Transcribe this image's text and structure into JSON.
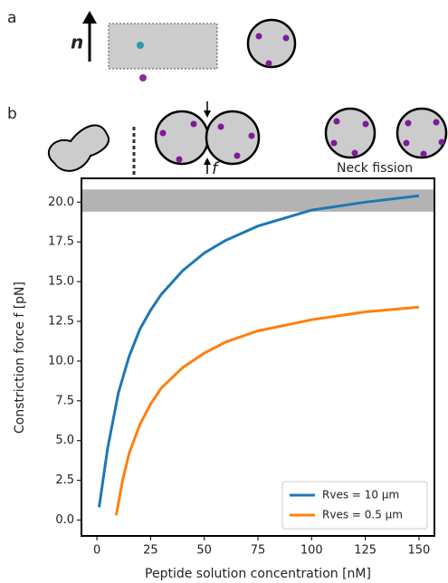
{
  "chart_data": {
    "type": "line",
    "panel_labels": [
      "a",
      "b"
    ],
    "annotations": [
      "n",
      "f",
      "Neck fission"
    ],
    "x_label": "Peptide solution concentration [nM]",
    "y_label": "Constriction force f [pN]",
    "xlim": [
      -7.2,
      157.2
    ],
    "ylim": [
      -1,
      21.5
    ],
    "xticks": [
      0,
      25,
      50,
      75,
      100,
      125,
      150
    ],
    "yticks": [
      {
        "value": 0,
        "label": "0.0"
      },
      2.5,
      {
        "value": 5,
        "label": "5.0"
      },
      7.5,
      {
        "value": 10,
        "label": "10.0"
      },
      12.5,
      {
        "value": 15,
        "label": "15.0"
      },
      17.5,
      {
        "value": 20,
        "label": "20.0"
      }
    ],
    "shaded_band": {
      "ymin": 19.4,
      "ymax": 20.8,
      "color": "#b3b3b3"
    },
    "legend": "lower right",
    "series": [
      {
        "name": "Rves = 10 μm",
        "color": "#1f77b4",
        "x": [
          1,
          5,
          10,
          15,
          20,
          25,
          30,
          40,
          50,
          60,
          75,
          100,
          125,
          150
        ],
        "values": [
          0.8,
          4.5,
          8,
          10.3,
          12,
          13.2,
          14.2,
          15.7,
          16.8,
          17.6,
          18.5,
          19.5,
          20.0,
          20.4
        ]
      },
      {
        "name": "Rves = 0.5 μm",
        "color": "#ff7f0e",
        "x": [
          9,
          12,
          15,
          20,
          25,
          30,
          40,
          50,
          60,
          75,
          100,
          125,
          150
        ],
        "values": [
          0.3,
          2.5,
          4.2,
          6,
          7.3,
          8.3,
          9.6,
          10.5,
          11.2,
          11.9,
          12.6,
          13.1,
          13.4
        ]
      }
    ]
  }
}
